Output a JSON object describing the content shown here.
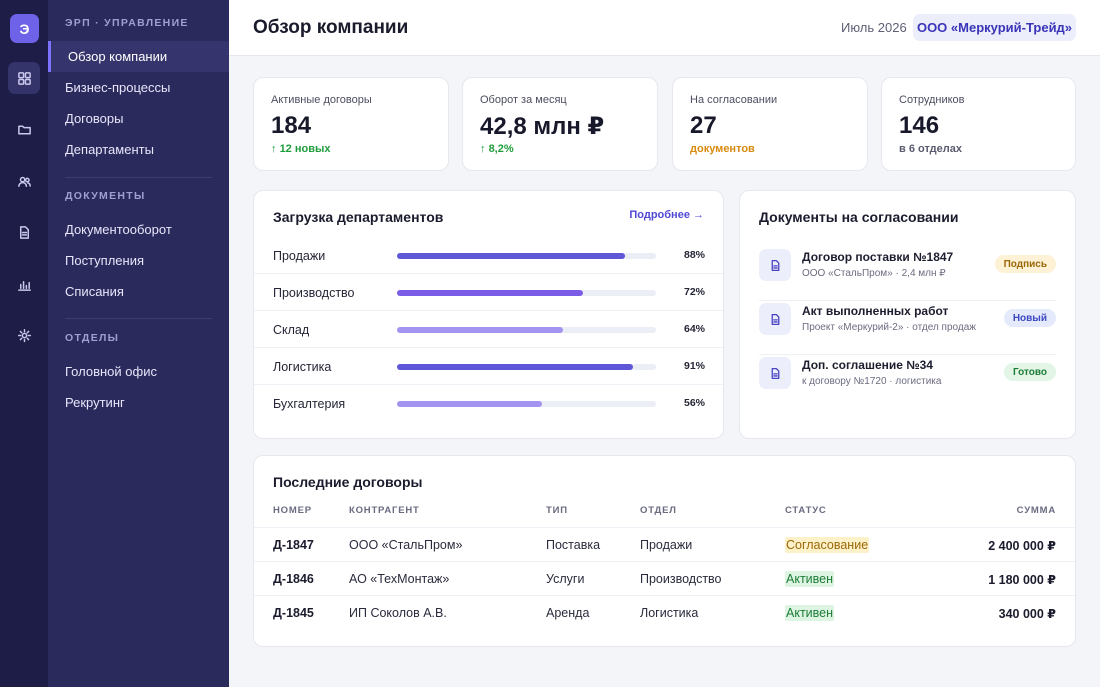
{
  "rail": {
    "logo": "Э"
  },
  "nav": {
    "section1": "ЭРП · УПРАВЛЕНИЕ",
    "items1": [
      "Обзор компании",
      "Бизнес-процессы",
      "Договоры",
      "Департаменты"
    ],
    "section2": "ДОКУМЕНТЫ",
    "items2": [
      "Документооборот",
      "Поступления",
      "Списания"
    ],
    "section3": "ОТДЕЛЫ",
    "items3": [
      "Головной офис",
      "Рекрутинг"
    ]
  },
  "header": {
    "title": "Обзор компании",
    "period": "Июль 2026",
    "org": "ООО «Меркурий-Трейд»"
  },
  "stats": [
    {
      "label": "Активные договоры",
      "value": "184",
      "sub": "12 новых",
      "trend": "↑"
    },
    {
      "label": "Оборот за месяц",
      "value": "42,8 млн ₽",
      "sub": "8,2%",
      "trend": "↑"
    },
    {
      "label": "На согласовании",
      "value": "27",
      "sub": "документов"
    },
    {
      "label": "Сотрудников",
      "value": "146",
      "sub": "в 6 отделах"
    }
  ],
  "departments": {
    "title": "Загрузка департаментов",
    "more": "Подробнее →",
    "rows": [
      {
        "name": "Продажи",
        "value": 88,
        "label": "88%",
        "color": "#5f56d8"
      },
      {
        "name": "Производство",
        "value": 72,
        "label": "72%",
        "color": "#7a5ce6"
      },
      {
        "name": "Склад",
        "value": 64,
        "label": "64%",
        "color": "#a494f2"
      },
      {
        "name": "Логистика",
        "value": 91,
        "label": "91%",
        "color": "#5f56d8"
      },
      {
        "name": "Бухгалтерия",
        "value": 56,
        "label": "56%",
        "color": "#a494f2"
      }
    ]
  },
  "approvals": {
    "title": "Документы на согласовании",
    "rows": [
      {
        "title": "Договор поставки №1847",
        "sub": "ООО «СтальПром» · 2,4 млн ₽",
        "badge": "Подпись",
        "kind": "sign"
      },
      {
        "title": "Акт выполненных работ",
        "sub": "Проект «Меркурий-2» · отдел продаж",
        "badge": "Новый",
        "kind": "new"
      },
      {
        "title": "Доп. соглашение №34",
        "sub": "к договору №1720 · логистика",
        "badge": "Готово",
        "kind": "done"
      }
    ]
  },
  "contracts": {
    "title": "Последние договоры",
    "headers": [
      "НОМЕР",
      "КОНТРАГЕНТ",
      "ТИП",
      "ОТДЕЛ",
      "СТАТУС",
      "СУММА"
    ],
    "rows": [
      {
        "num": "Д-1847",
        "party": "ООО «СтальПром»",
        "type": "Поставка",
        "dept": "Продажи",
        "status": "Согласование",
        "kind": "approval",
        "sum": "2 400 000 ₽"
      },
      {
        "num": "Д-1846",
        "party": "АО «ТехМонтаж»",
        "type": "Услуги",
        "dept": "Производство",
        "status": "Активен",
        "kind": "active",
        "sum": "1 180 000 ₽"
      },
      {
        "num": "Д-1845",
        "party": "ИП Соколов А.В.",
        "type": "Аренда",
        "dept": "Логистика",
        "status": "Активен",
        "kind": "active",
        "sum": "340 000 ₽"
      }
    ]
  }
}
